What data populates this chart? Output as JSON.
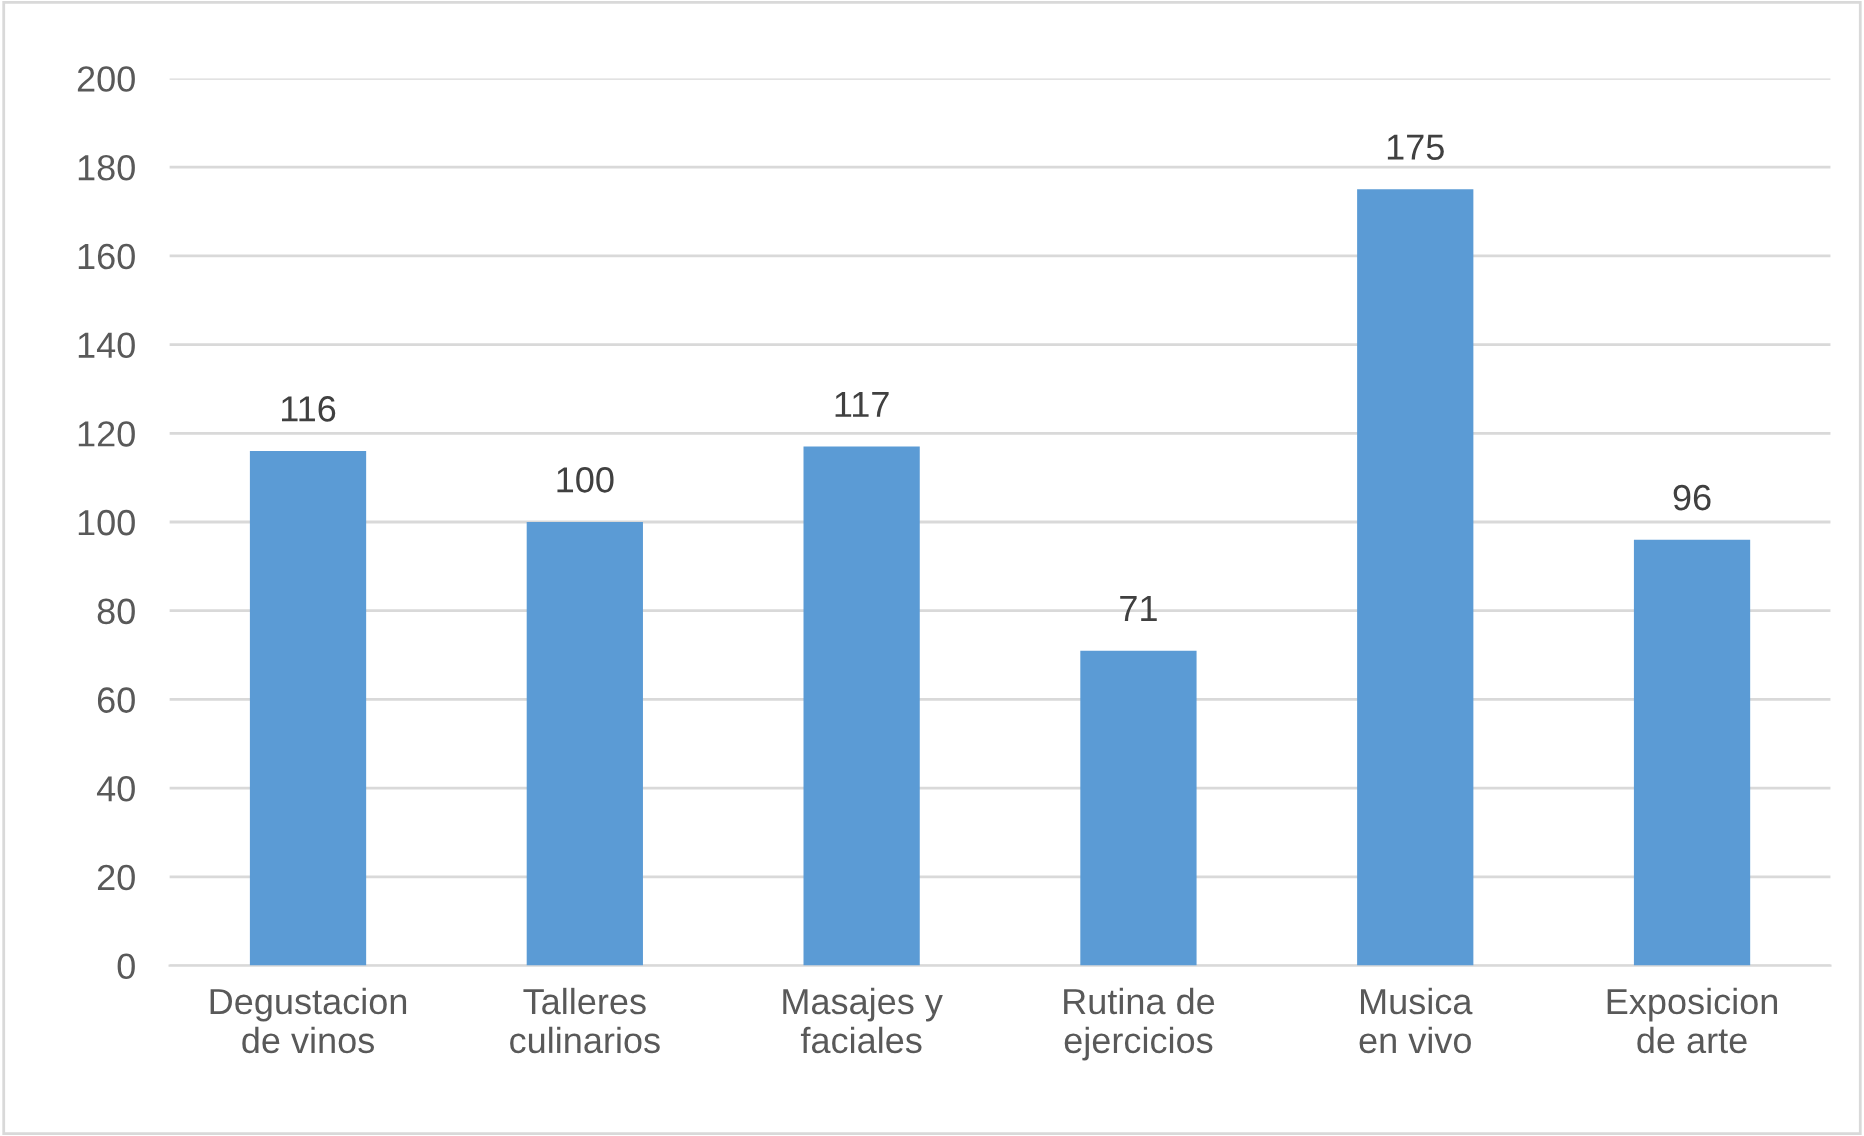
{
  "chart_data": {
    "type": "bar",
    "categories": [
      "Degustacion de vinos",
      "Talleres culinarios",
      "Masajes y faciales",
      "Rutina de ejercicios",
      "Musica en vivo",
      "Exposicion de arte"
    ],
    "values": [
      116,
      100,
      117,
      71,
      175,
      96
    ],
    "color": "#5b9bd5",
    "ylim": [
      0,
      200
    ],
    "yticks": [
      0,
      20,
      40,
      60,
      80,
      100,
      120,
      140,
      160,
      180,
      200
    ],
    "grid": "y",
    "data_labels": true,
    "legend": false
  }
}
